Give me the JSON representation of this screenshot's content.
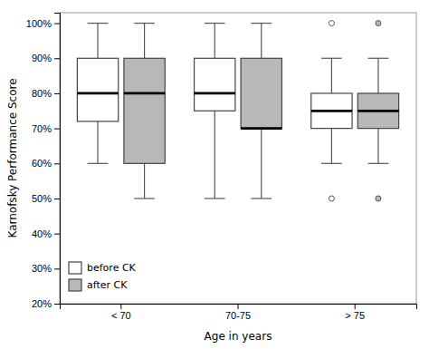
{
  "chart_data": {
    "type": "box",
    "xlabel": "Age in years",
    "ylabel": "Karnofsky Performance Score",
    "categories": [
      "< 70",
      "70-75",
      "> 75"
    ],
    "series": [
      {
        "name": "before CK",
        "color": "white",
        "values": [
          {
            "whislo": 60,
            "q1": 72,
            "med": 80,
            "q3": 90,
            "whishi": 100,
            "fliers": []
          },
          {
            "whislo": 50,
            "q1": 75,
            "med": 80,
            "q3": 90,
            "whishi": 100,
            "fliers": []
          },
          {
            "whislo": 60,
            "q1": 70,
            "med": 75,
            "q3": 80,
            "whishi": 90,
            "fliers": [
              50,
              100
            ]
          }
        ]
      },
      {
        "name": "after CK",
        "color": "#b8b8b8",
        "values": [
          {
            "whislo": 50,
            "q1": 60,
            "med": 80,
            "q3": 90,
            "whishi": 100,
            "fliers": []
          },
          {
            "whislo": 50,
            "q1": 70,
            "med": 70,
            "q3": 90,
            "whishi": 100,
            "fliers": []
          },
          {
            "whislo": 60,
            "q1": 70,
            "med": 75,
            "q3": 80,
            "whishi": 90,
            "fliers": [
              50,
              100
            ]
          }
        ]
      }
    ],
    "ylim": [
      20,
      103
    ],
    "yticks": [
      {
        "value": 20,
        "label": "20%"
      },
      {
        "value": 30,
        "label": "30%"
      },
      {
        "value": 40,
        "label": "40%"
      },
      {
        "value": 50,
        "label": "50%"
      },
      {
        "value": 60,
        "label": "60%"
      },
      {
        "value": 70,
        "label": "70%"
      },
      {
        "value": 80,
        "label": "80%"
      },
      {
        "value": 90,
        "label": "90%"
      },
      {
        "value": 100,
        "label": "100%"
      }
    ],
    "legend": "lower left"
  }
}
